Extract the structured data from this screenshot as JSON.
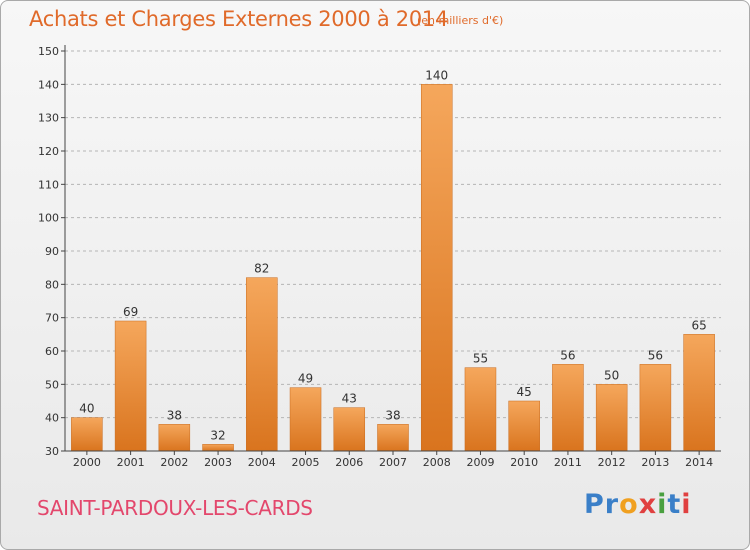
{
  "title": "Achats et Charges Externes 2000 à 2014",
  "subtitle": "(en milliers d'€)",
  "place": "SAINT-PARDOUX-LES-CARDS",
  "logo": {
    "letters": [
      "P",
      "r",
      "o",
      "x",
      "i",
      "t",
      "i"
    ],
    "colors": [
      "#3a7fc8",
      "#3a7fc8",
      "#f0a020",
      "#e04040",
      "#4aa040",
      "#3a7fc8",
      "#e04040"
    ]
  },
  "colors": {
    "bar_top": "#f5a75c",
    "bar_bottom": "#d9741e",
    "bar_edge": "#c86a1c",
    "grid": "#b5b5b5",
    "axis": "#444444",
    "text": "#333333"
  },
  "chart_data": {
    "type": "bar",
    "categories": [
      "2000",
      "2001",
      "2002",
      "2003",
      "2004",
      "2005",
      "2006",
      "2007",
      "2008",
      "2009",
      "2010",
      "2011",
      "2012",
      "2013",
      "2014"
    ],
    "values": [
      40,
      69,
      38,
      32,
      82,
      49,
      43,
      38,
      140,
      55,
      45,
      56,
      50,
      56,
      65
    ],
    "data_labels": [
      "40",
      "69",
      "38",
      "32",
      "82",
      "49",
      "43",
      "38",
      "140",
      "55",
      "45",
      "56",
      "50",
      "56",
      "65"
    ],
    "ylim": [
      30,
      150
    ],
    "yticks": [
      30,
      40,
      50,
      60,
      70,
      80,
      90,
      100,
      110,
      120,
      130,
      140,
      150
    ],
    "grid": "horizontal dashed",
    "xlabel": "",
    "ylabel": ""
  }
}
